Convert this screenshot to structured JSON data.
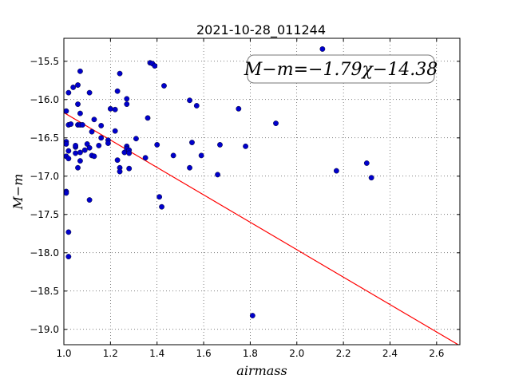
{
  "chart_data": {
    "type": "scatter",
    "title": "2021-10-28_011244",
    "xlabel": "airmass",
    "ylabel": "M−m",
    "xlim": [
      1.0,
      2.7
    ],
    "ylim": [
      -19.2,
      -15.2
    ],
    "xticks": [
      1.0,
      1.2,
      1.4,
      1.6,
      1.8,
      2.0,
      2.2,
      2.4,
      2.6
    ],
    "xtick_labels": [
      "1.0",
      "1.2",
      "1.4",
      "1.6",
      "1.8",
      "2.0",
      "2.2",
      "2.4",
      "2.6"
    ],
    "yticks": [
      -15.5,
      -16.0,
      -16.5,
      -17.0,
      -17.5,
      -18.0,
      -18.5,
      -19.0
    ],
    "ytick_labels": [
      "−15.5",
      "−16.0",
      "−16.5",
      "−17.0",
      "−17.5",
      "−18.0",
      "−18.5",
      "−19.0"
    ],
    "grid": true,
    "annotation": "M−m=−1.79χ−14.38",
    "fit": {
      "slope": -1.79,
      "intercept": -14.38,
      "x_range": [
        1.0,
        2.7
      ],
      "color": "#ff0000"
    },
    "point_color": "#0000cc",
    "points": [
      [
        1.01,
        -16.15
      ],
      [
        1.01,
        -16.55
      ],
      [
        1.01,
        -16.58
      ],
      [
        1.01,
        -16.74
      ],
      [
        1.01,
        -17.2
      ],
      [
        1.01,
        -17.22
      ],
      [
        1.02,
        -15.91
      ],
      [
        1.02,
        -16.33
      ],
      [
        1.02,
        -16.67
      ],
      [
        1.02,
        -16.77
      ],
      [
        1.02,
        -17.73
      ],
      [
        1.02,
        -18.05
      ],
      [
        1.03,
        -16.32
      ],
      [
        1.04,
        -15.84
      ],
      [
        1.05,
        -16.62
      ],
      [
        1.05,
        -16.7
      ],
      [
        1.05,
        -16.6
      ],
      [
        1.06,
        -15.81
      ],
      [
        1.06,
        -16.06
      ],
      [
        1.06,
        -16.33
      ],
      [
        1.06,
        -16.89
      ],
      [
        1.07,
        -15.63
      ],
      [
        1.07,
        -16.18
      ],
      [
        1.07,
        -16.33
      ],
      [
        1.07,
        -16.69
      ],
      [
        1.07,
        -16.8
      ],
      [
        1.08,
        -16.33
      ],
      [
        1.09,
        -16.66
      ],
      [
        1.1,
        -16.58
      ],
      [
        1.11,
        -15.91
      ],
      [
        1.11,
        -16.63
      ],
      [
        1.11,
        -17.31
      ],
      [
        1.12,
        -16.42
      ],
      [
        1.12,
        -16.73
      ],
      [
        1.13,
        -16.26
      ],
      [
        1.13,
        -16.74
      ],
      [
        1.15,
        -16.6
      ],
      [
        1.16,
        -16.34
      ],
      [
        1.16,
        -16.5
      ],
      [
        1.19,
        -16.53
      ],
      [
        1.19,
        -16.57
      ],
      [
        1.2,
        -16.12
      ],
      [
        1.22,
        -16.13
      ],
      [
        1.22,
        -16.41
      ],
      [
        1.23,
        -15.89
      ],
      [
        1.23,
        -16.79
      ],
      [
        1.24,
        -15.66
      ],
      [
        1.24,
        -16.89
      ],
      [
        1.24,
        -16.94
      ],
      [
        1.26,
        -16.69
      ],
      [
        1.27,
        -15.99
      ],
      [
        1.27,
        -16.06
      ],
      [
        1.27,
        -16.61
      ],
      [
        1.27,
        -16.64
      ],
      [
        1.28,
        -16.66
      ],
      [
        1.28,
        -16.7
      ],
      [
        1.28,
        -16.9
      ],
      [
        1.31,
        -16.51
      ],
      [
        1.35,
        -16.76
      ],
      [
        1.36,
        -16.24
      ],
      [
        1.37,
        -15.52
      ],
      [
        1.38,
        -15.53
      ],
      [
        1.39,
        -15.56
      ],
      [
        1.4,
        -16.59
      ],
      [
        1.41,
        -17.27
      ],
      [
        1.42,
        -17.4
      ],
      [
        1.43,
        -15.82
      ],
      [
        1.47,
        -16.73
      ],
      [
        1.54,
        -16.01
      ],
      [
        1.54,
        -16.89
      ],
      [
        1.55,
        -16.56
      ],
      [
        1.57,
        -16.08
      ],
      [
        1.59,
        -16.73
      ],
      [
        1.66,
        -16.98
      ],
      [
        1.67,
        -16.59
      ],
      [
        1.75,
        -16.12
      ],
      [
        1.78,
        -16.61
      ],
      [
        1.81,
        -18.82
      ],
      [
        1.91,
        -16.31
      ],
      [
        2.11,
        -15.34
      ],
      [
        2.17,
        -16.93
      ],
      [
        2.3,
        -16.83
      ],
      [
        2.32,
        -17.02
      ]
    ]
  }
}
